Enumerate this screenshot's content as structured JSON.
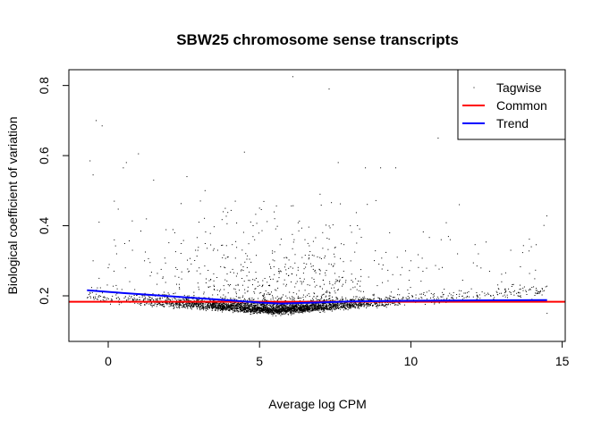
{
  "chart_data": {
    "type": "scatter",
    "title": "SBW25 chromosome sense transcripts",
    "xlabel": "Average log CPM",
    "ylabel": "Biological coefficient of variation",
    "xlim": [
      -1.3,
      15.1
    ],
    "ylim": [
      0.07,
      0.845
    ],
    "x_ticks": [
      0,
      5,
      10,
      15
    ],
    "y_ticks": [
      0.2,
      0.4,
      0.6,
      0.8
    ],
    "grid": false,
    "legend_position": "top-right",
    "legend": [
      {
        "label": "Tagwise",
        "style": "point",
        "color": "#000000"
      },
      {
        "label": "Common",
        "style": "line",
        "color": "#ff0000"
      },
      {
        "label": "Trend",
        "style": "line",
        "color": "#0000ff"
      }
    ],
    "series": [
      {
        "name": "Common",
        "type": "hline",
        "color": "#ff0000",
        "y": 0.183
      },
      {
        "name": "Trend",
        "type": "line",
        "color": "#0000ff",
        "x": [
          -0.7,
          0.5,
          2,
          3.5,
          5,
          5.7,
          6.5,
          8,
          10,
          12,
          14.5
        ],
        "y": [
          0.216,
          0.208,
          0.199,
          0.19,
          0.181,
          0.178,
          0.18,
          0.184,
          0.186,
          0.187,
          0.188
        ]
      },
      {
        "name": "Tagwise",
        "type": "scatter",
        "color": "#000000",
        "x": [
          -0.6,
          -0.5,
          -0.4,
          -0.3,
          -0.2,
          0.2,
          0.5,
          0.6,
          1.0,
          1.5,
          2.6,
          3.2,
          4.5,
          5.0,
          6.1,
          7.3,
          7.6,
          8.5,
          9.0,
          9.5,
          10.9,
          11.3,
          11.6,
          12.6,
          13.3,
          -0.5,
          -0.3,
          0.0,
          0.3,
          0.8,
          1.2,
          1.8,
          2.2,
          3.0,
          3.8,
          4.2,
          5.5,
          6.5,
          7.0,
          8.0,
          9.3,
          10.0,
          10.4,
          11.0,
          12.0,
          13.0,
          14.0,
          14.5
        ],
        "y": [
          0.585,
          0.545,
          0.7,
          0.41,
          0.685,
          0.47,
          0.565,
          0.58,
          0.605,
          0.53,
          0.54,
          0.5,
          0.61,
          0.45,
          0.825,
          0.79,
          0.58,
          0.565,
          0.565,
          0.565,
          0.65,
          0.36,
          0.46,
          0.27,
          0.33,
          0.3,
          0.25,
          0.28,
          0.22,
          0.33,
          0.3,
          0.25,
          0.38,
          0.41,
          0.44,
          0.47,
          0.42,
          0.36,
          0.49,
          0.4,
          0.38,
          0.3,
          0.27,
          0.36,
          0.22,
          0.24,
          0.19,
          0.15
        ]
      }
    ],
    "bulk_density": {
      "description_only": false,
      "x_center": 5.5,
      "x_range": [
        -0.7,
        14.5
      ],
      "y_center": 0.14,
      "y_range": [
        0.09,
        0.5
      ],
      "approx_points": 4000
    }
  }
}
